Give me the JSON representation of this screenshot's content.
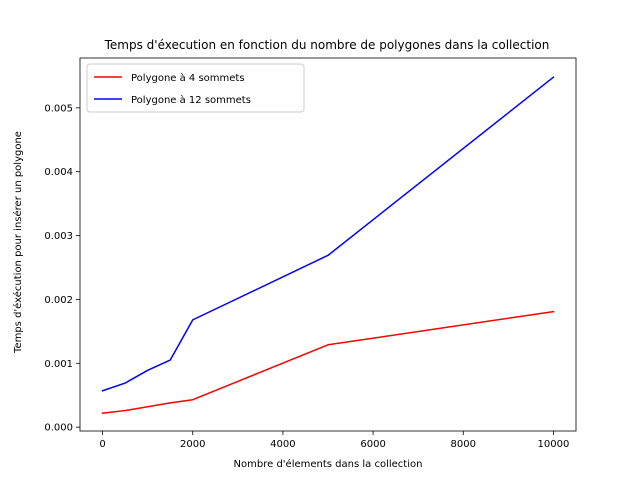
{
  "chart_data": {
    "type": "line",
    "title": "Temps d'éxecution en fonction du nombre de polygones dans la collection",
    "xlabel": "Nombre d'élements dans la collection",
    "ylabel": "Temps d'éxécution pour insérer un polygone",
    "xlim": [
      -500,
      10500
    ],
    "ylim": [
      -6e-05,
      0.00578
    ],
    "xticks": [
      0,
      2000,
      4000,
      6000,
      8000,
      10000
    ],
    "yticks": [
      0.0,
      0.001,
      0.002,
      0.003,
      0.004,
      0.005
    ],
    "xtick_labels": [
      "0",
      "2000",
      "4000",
      "6000",
      "8000",
      "10000"
    ],
    "ytick_labels": [
      "0.000",
      "0.001",
      "0.002",
      "0.003",
      "0.004",
      "0.005"
    ],
    "grid": false,
    "legend_position": "top-left",
    "series": [
      {
        "name": "Polygone à 4 sommets",
        "color": "#ff0000",
        "x": [
          0,
          500,
          1000,
          1500,
          2000,
          5000,
          10000
        ],
        "y": [
          0.00022,
          0.00026,
          0.00032,
          0.00038,
          0.00043,
          0.00129,
          0.00181
        ]
      },
      {
        "name": "Polygone à 12 sommets",
        "color": "#0000ff",
        "x": [
          0,
          500,
          1000,
          1500,
          2000,
          5000,
          10000
        ],
        "y": [
          0.00057,
          0.00069,
          0.00089,
          0.00105,
          0.00168,
          0.00269,
          0.00548
        ]
      }
    ]
  }
}
